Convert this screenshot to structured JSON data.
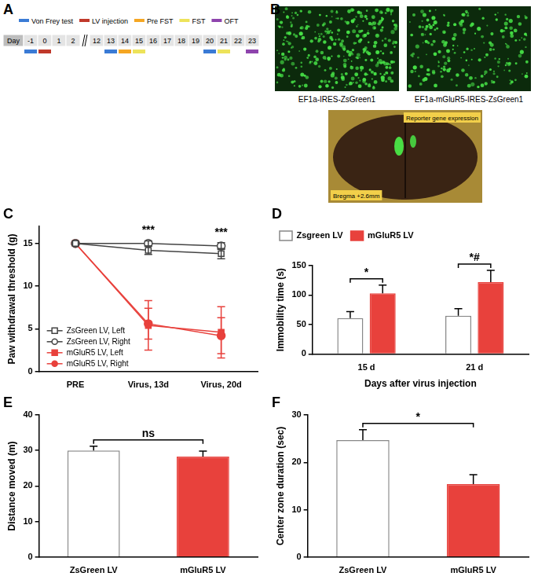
{
  "panel_labels": [
    "A",
    "B",
    "C",
    "D",
    "E",
    "F"
  ],
  "timeline": {
    "legend": [
      {
        "label": "Von Frey test",
        "color": "#3a7bd5"
      },
      {
        "label": "LV injection",
        "color": "#c0392b"
      },
      {
        "label": "Pre FST",
        "color": "#f5a623"
      },
      {
        "label": "FST",
        "color": "#ede35a"
      },
      {
        "label": "OFT",
        "color": "#8e44ad"
      }
    ],
    "day_label": "Day",
    "days": [
      "-1",
      "0",
      "1",
      "2",
      "12",
      "13",
      "14",
      "15",
      "16",
      "17",
      "18",
      "19",
      "20",
      "21",
      "22",
      "23"
    ],
    "break_after": "2",
    "events": [
      {
        "day": "-1",
        "event": "Von Frey test"
      },
      {
        "day": "0",
        "event": "LV injection"
      },
      {
        "day": "13",
        "event": "Von Frey test"
      },
      {
        "day": "14",
        "event": "Pre FST"
      },
      {
        "day": "15",
        "event": "FST"
      },
      {
        "day": "20",
        "event": "Von Frey test"
      },
      {
        "day": "21",
        "event": "FST"
      },
      {
        "day": "23",
        "event": "OFT"
      }
    ]
  },
  "images": {
    "captions": [
      "EF1a-IRES-ZsGreen1",
      "EF1a-mGluR5-IRES-ZsGreen1"
    ],
    "section_labels": [
      "Reporter gene expression",
      "Bregma +2.6mm"
    ]
  },
  "chart_data": [
    {
      "type": "line",
      "ylabel": "Paw withdrawal threshold (g)",
      "categories": [
        "PRE",
        "Virus, 13d",
        "Virus, 20d"
      ],
      "ylim": [
        0,
        17
      ],
      "yticks": [
        0,
        5,
        10,
        15
      ],
      "grid": false,
      "legend": "lower left",
      "series": [
        {
          "name": "ZsGreen LV, Left",
          "color": "#444444",
          "marker": "open-square",
          "values": [
            15,
            14.2,
            13.8
          ],
          "errors": [
            0,
            0.5,
            0.6
          ]
        },
        {
          "name": "ZsGreen LV, Right",
          "color": "#444444",
          "marker": "open-circle",
          "values": [
            15,
            15,
            14.7
          ],
          "errors": [
            0,
            0.3,
            0.4
          ]
        },
        {
          "name": "mGluR5 LV, Left",
          "color": "#e8413c",
          "marker": "square",
          "values": [
            15,
            5.4,
            4.6
          ],
          "errors": [
            0,
            2.9,
            3.0
          ]
        },
        {
          "name": "mGluR5 LV, Right",
          "color": "#e8413c",
          "marker": "circle",
          "values": [
            15,
            5.6,
            4.2
          ],
          "errors": [
            0,
            1.8,
            2.1
          ]
        }
      ],
      "annotations": [
        {
          "x": "Virus, 13d",
          "text": "***"
        },
        {
          "x": "Virus, 20d",
          "text": "***"
        }
      ]
    },
    {
      "type": "bar",
      "xlabel": "Days after virus injection",
      "ylabel": "Immobility time (s)",
      "categories": [
        "15 d",
        "21 d"
      ],
      "ylim": [
        0,
        150
      ],
      "yticks": [
        0,
        50,
        100,
        150
      ],
      "grid": false,
      "legend": "top",
      "series": [
        {
          "name": "Zsgreen LV",
          "color": "#ffffff",
          "values": [
            61,
            65
          ],
          "errors": [
            11,
            12
          ]
        },
        {
          "name": "mGluR5 LV",
          "color": "#e8413c",
          "values": [
            103,
            122
          ],
          "errors": [
            14,
            20
          ]
        }
      ],
      "significance": [
        {
          "category": "15 d",
          "text": "*"
        },
        {
          "category": "21 d",
          "text": "*#"
        }
      ]
    },
    {
      "type": "bar",
      "ylabel": "Distance moved (m)",
      "categories": [
        "ZsGreen LV",
        "mGluR5 LV"
      ],
      "values": [
        30,
        28.3
      ],
      "errors": [
        1.2,
        1.5
      ],
      "colors": [
        "#ffffff",
        "#e8413c"
      ],
      "ylim": [
        0,
        40
      ],
      "yticks": [
        0,
        10,
        20,
        30,
        40
      ],
      "grid": false,
      "significance": [
        {
          "from": "ZsGreen LV",
          "to": "mGluR5 LV",
          "text": "ns"
        }
      ]
    },
    {
      "type": "bar",
      "ylabel": "Center zone duration (sec)",
      "categories": [
        "ZsGreen LV",
        "mGluR5 LV"
      ],
      "values": [
        24.7,
        15.4
      ],
      "errors": [
        2.2,
        2.0
      ],
      "colors": [
        "#ffffff",
        "#e8413c"
      ],
      "ylim": [
        0,
        30
      ],
      "yticks": [
        0,
        10,
        20,
        30
      ],
      "grid": false,
      "significance": [
        {
          "from": "ZsGreen LV",
          "to": "mGluR5 LV",
          "text": "*"
        }
      ]
    }
  ]
}
